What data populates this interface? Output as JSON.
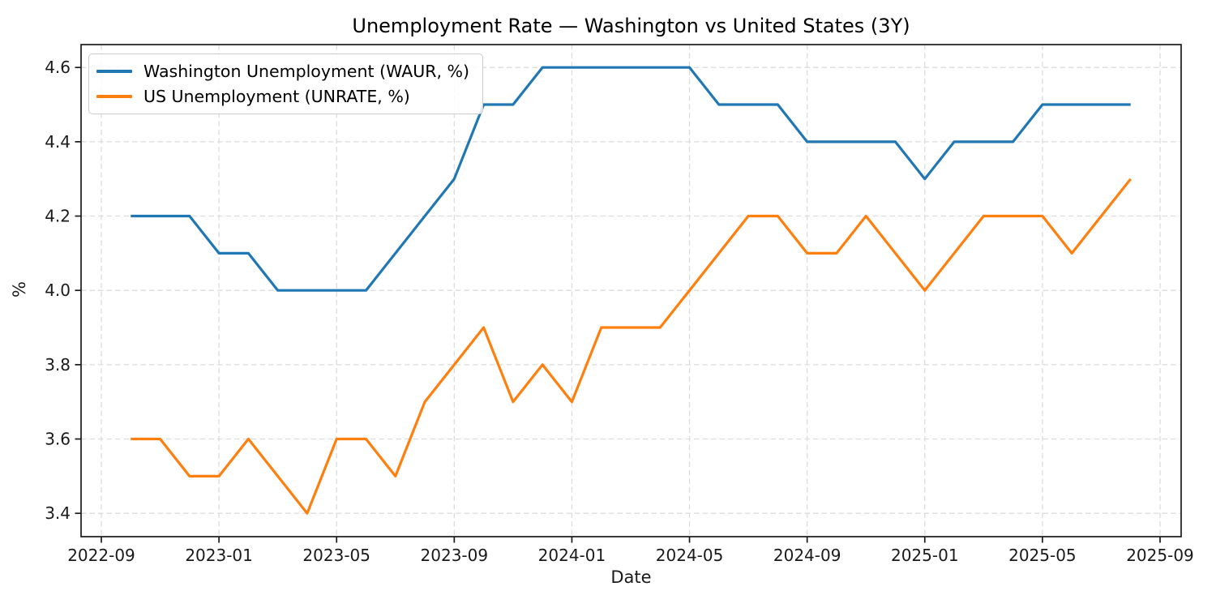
{
  "chart_data": {
    "type": "line",
    "title": "Unemployment Rate — Washington vs United States (3Y)",
    "xlabel": "Date",
    "ylabel": "%",
    "x": [
      "2022-10",
      "2022-11",
      "2022-12",
      "2023-01",
      "2023-02",
      "2023-03",
      "2023-04",
      "2023-05",
      "2023-06",
      "2023-07",
      "2023-08",
      "2023-09",
      "2023-10",
      "2023-11",
      "2023-12",
      "2024-01",
      "2024-02",
      "2024-03",
      "2024-04",
      "2024-05",
      "2024-06",
      "2024-07",
      "2024-08",
      "2024-09",
      "2024-10",
      "2024-11",
      "2024-12",
      "2025-01",
      "2025-02",
      "2025-03",
      "2025-04",
      "2025-05",
      "2025-06",
      "2025-07",
      "2025-08"
    ],
    "series": [
      {
        "name": "Washington Unemployment (WAUR, %)",
        "color": "#1f77b4",
        "values": [
          4.2,
          4.2,
          4.2,
          4.1,
          4.1,
          4.0,
          4.0,
          4.0,
          4.0,
          4.1,
          4.2,
          4.3,
          4.5,
          4.5,
          4.6,
          4.6,
          4.6,
          4.6,
          4.6,
          4.6,
          4.5,
          4.5,
          4.5,
          4.4,
          4.4,
          4.4,
          4.4,
          4.3,
          4.4,
          4.4,
          4.4,
          4.5,
          4.5,
          4.5,
          4.5
        ]
      },
      {
        "name": "US Unemployment (UNRATE, %)",
        "color": "#ff7f0e",
        "values": [
          3.6,
          3.6,
          3.5,
          3.5,
          3.6,
          3.5,
          3.4,
          3.6,
          3.6,
          3.5,
          3.7,
          3.8,
          3.9,
          3.7,
          3.8,
          3.7,
          3.9,
          3.9,
          3.9,
          4.0,
          4.1,
          4.2,
          4.2,
          4.1,
          4.1,
          4.2,
          4.1,
          4.0,
          4.1,
          4.2,
          4.2,
          4.2,
          4.1,
          4.2,
          4.3
        ]
      }
    ],
    "xticks": [
      "2022-09",
      "2023-01",
      "2023-05",
      "2023-09",
      "2024-01",
      "2024-05",
      "2024-09",
      "2025-01",
      "2025-05",
      "2025-09"
    ],
    "yticks": [
      "3.4",
      "3.6",
      "3.8",
      "4.0",
      "4.2",
      "4.4",
      "4.6"
    ],
    "ylim": [
      3.337,
      4.665
    ],
    "grid": true,
    "grid_style": "dashed",
    "legend_position": "upper left"
  }
}
